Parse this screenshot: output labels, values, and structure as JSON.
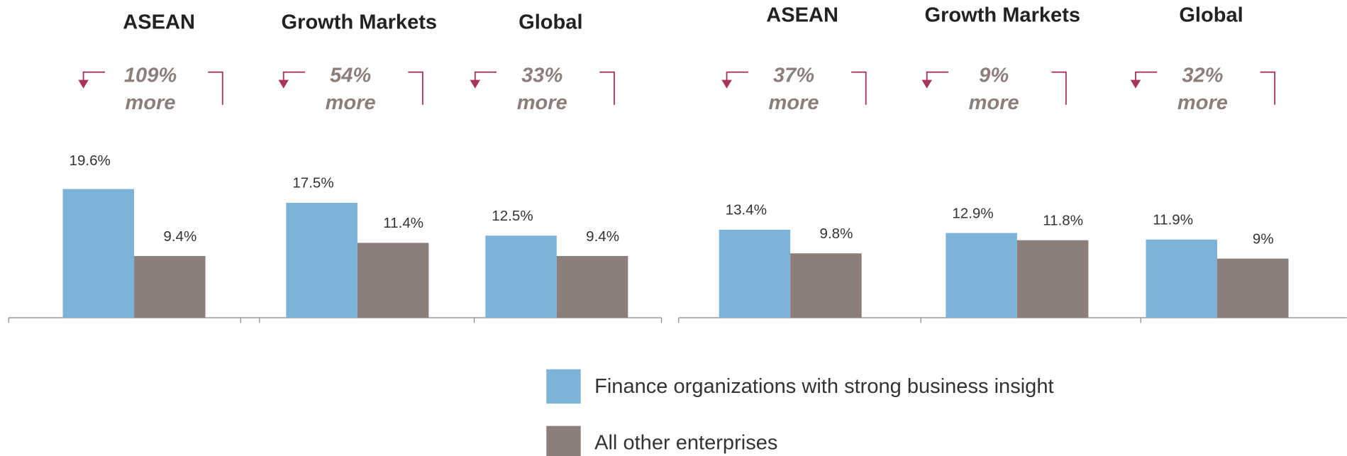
{
  "chart_data": [
    {
      "type": "bar",
      "categories": [
        "ASEAN",
        "Growth Markets",
        "Global"
      ],
      "annotations": [
        {
          "text": "109%",
          "sub": "more"
        },
        {
          "text": "54%",
          "sub": "more"
        },
        {
          "text": "33%",
          "sub": "more"
        }
      ],
      "series": [
        {
          "name": "Finance organizations with strong business insight",
          "color": "#7eb3d9",
          "values": [
            19.6,
            17.5,
            12.5
          ],
          "value_labels": [
            "19.6%",
            "17.5%",
            "12.5%"
          ]
        },
        {
          "name": "All other enterprises",
          "color": "#8c7e7a",
          "values": [
            9.4,
            11.4,
            9.4
          ],
          "value_labels": [
            "9.4%",
            "11.4%",
            "9.4%"
          ]
        }
      ]
    },
    {
      "type": "bar",
      "categories": [
        "ASEAN",
        "Growth Markets",
        "Global"
      ],
      "annotations": [
        {
          "text": "37%",
          "sub": "more"
        },
        {
          "text": "9%",
          "sub": "more"
        },
        {
          "text": "32%",
          "sub": "more"
        }
      ],
      "series": [
        {
          "color": "#7eb3d9",
          "values": [
            13.4,
            12.9,
            11.9
          ],
          "value_labels": [
            "13.4%",
            "12.9%",
            "11.9%"
          ]
        },
        {
          "color": "#8c7e7a",
          "values": [
            9.8,
            11.8,
            9
          ],
          "value_labels": [
            "9.8%",
            "11.8%",
            "9%"
          ]
        }
      ]
    }
  ]
}
